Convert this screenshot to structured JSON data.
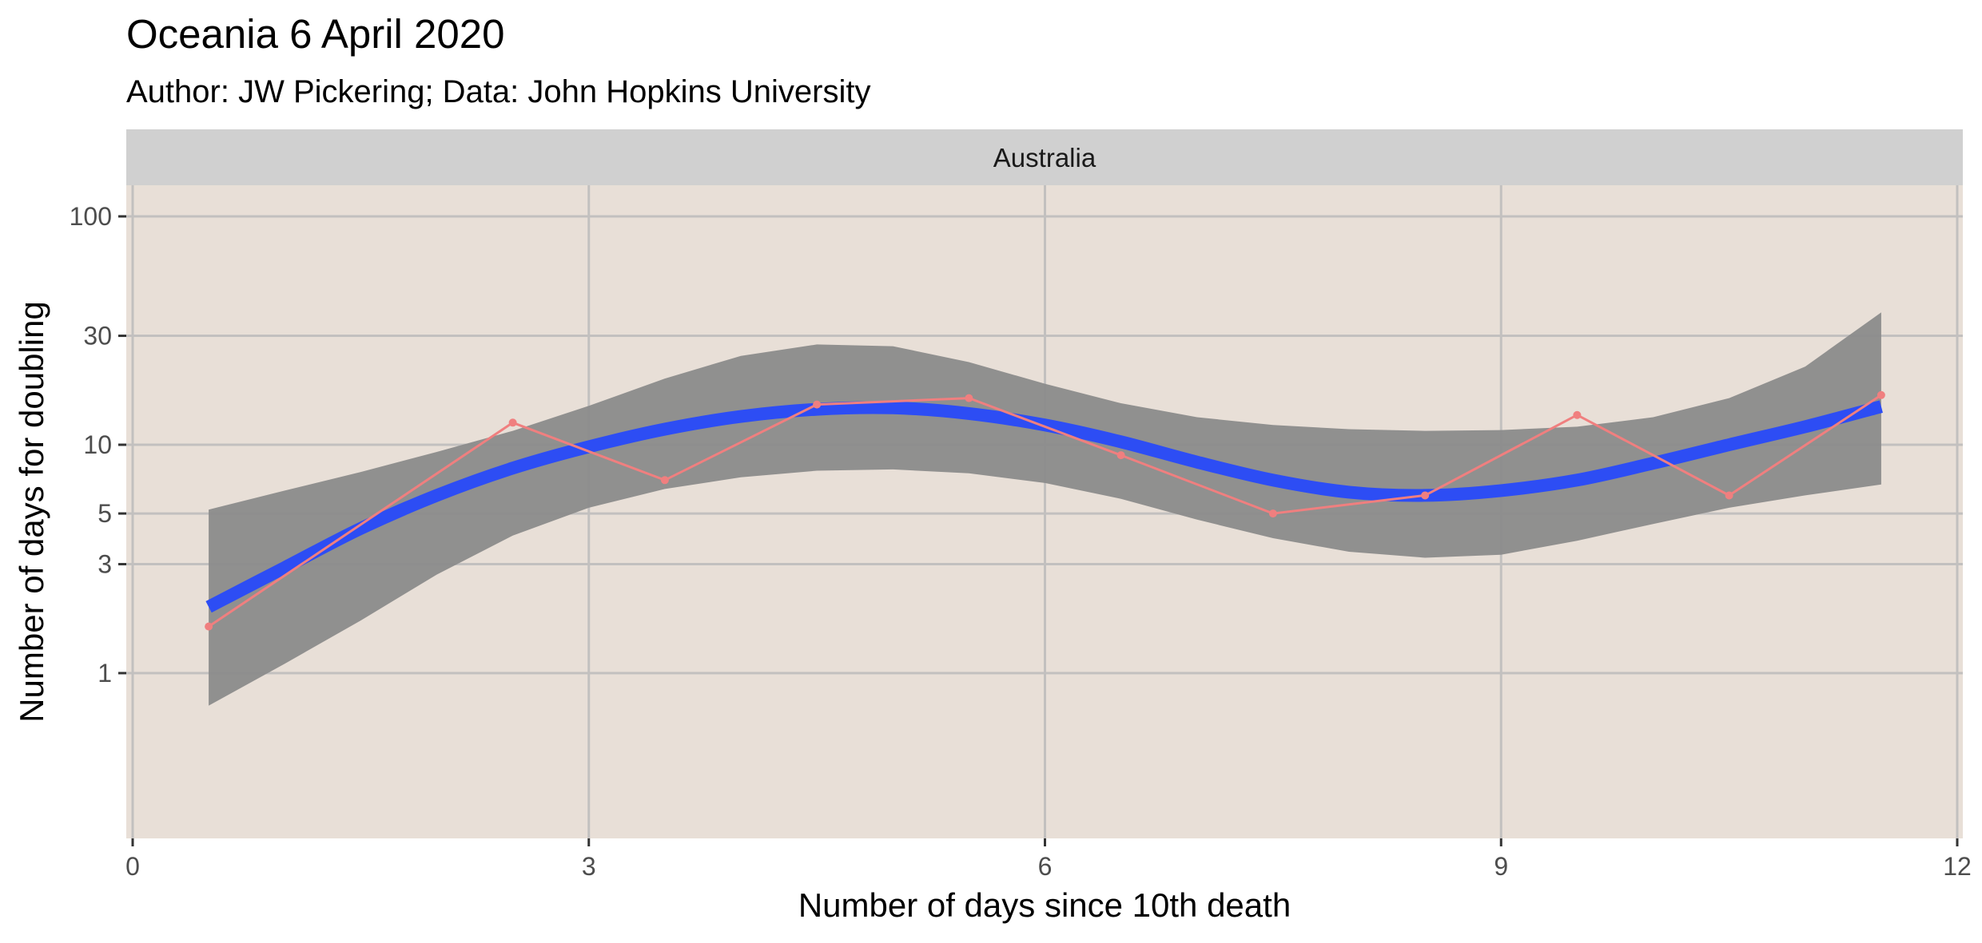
{
  "chart_data": {
    "type": "line",
    "title": "Oceania 6 April 2020",
    "subtitle": "Author: JW Pickering; Data: John Hopkins University",
    "facet": "Australia",
    "xlabel": "Number of days since 10th death",
    "ylabel": "Number of days for doubling",
    "x_scale": "linear",
    "y_scale": "log",
    "xlim": [
      0,
      12
    ],
    "ylim": [
      0.2,
      130
    ],
    "x_ticks": [
      0,
      3,
      6,
      9,
      12
    ],
    "y_ticks": [
      1,
      3,
      5,
      10,
      30,
      100
    ],
    "grid": true,
    "legend": "none",
    "series": [
      {
        "kind": "observed",
        "x": [
          0.5,
          2.5,
          3.5,
          4.5,
          5.5,
          6.5,
          7.5,
          8.5,
          9.5,
          10.5,
          11.5
        ],
        "y": [
          1.6,
          12.5,
          7.0,
          15.0,
          16.0,
          9.0,
          5.0,
          6.0,
          13.5,
          6.0,
          16.5
        ]
      },
      {
        "kind": "smooth",
        "x": [
          0.5,
          1.0,
          1.5,
          2.0,
          2.5,
          3.0,
          3.5,
          4.0,
          4.5,
          5.0,
          5.5,
          6.0,
          6.5,
          7.0,
          7.5,
          8.0,
          8.5,
          9.0,
          9.5,
          10.0,
          10.5,
          11.0,
          11.5
        ],
        "y": [
          1.95,
          2.9,
          4.3,
          6.0,
          7.9,
          9.8,
          11.7,
          13.3,
          14.3,
          14.5,
          13.7,
          12.2,
          10.3,
          8.4,
          7.0,
          6.2,
          6.0,
          6.3,
          7.0,
          8.3,
          10.0,
          12.0,
          14.7
        ]
      },
      {
        "kind": "confidence_band",
        "x": [
          0.5,
          1.0,
          1.5,
          2.0,
          2.5,
          3.0,
          3.5,
          4.0,
          4.5,
          5.0,
          5.5,
          6.0,
          6.5,
          7.0,
          7.5,
          8.0,
          8.5,
          9.0,
          9.5,
          10.0,
          10.5,
          11.0,
          11.5
        ],
        "lower": [
          0.72,
          1.1,
          1.7,
          2.7,
          4.0,
          5.3,
          6.4,
          7.2,
          7.7,
          7.8,
          7.5,
          6.8,
          5.8,
          4.7,
          3.9,
          3.4,
          3.2,
          3.3,
          3.8,
          4.5,
          5.3,
          6.0,
          6.7
        ],
        "upper": [
          5.2,
          6.3,
          7.6,
          9.3,
          11.5,
          14.8,
          19.5,
          24.5,
          27.5,
          27.0,
          23.0,
          18.5,
          15.2,
          13.2,
          12.2,
          11.7,
          11.5,
          11.6,
          12.0,
          13.2,
          16.0,
          22.0,
          38.0
        ]
      }
    ],
    "colors": {
      "panel_background": "#e8dfd7",
      "grid": "#c2c0bf",
      "strip_background": "#d0d0d0",
      "observed_line": "#f07f7f",
      "smooth_line": "#2d4df4",
      "confidence_band": "#8b8b8b",
      "axis_text": "#4d4d4d"
    }
  }
}
